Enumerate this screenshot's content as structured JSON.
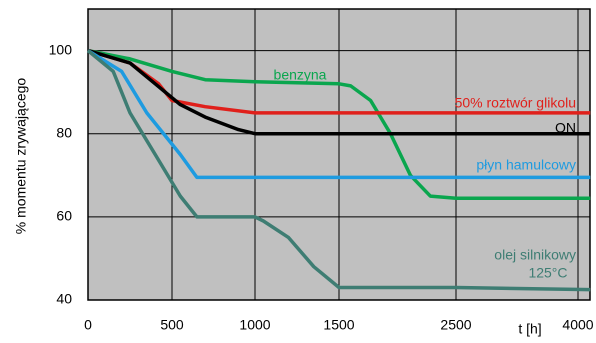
{
  "chart_data": {
    "type": "line",
    "y_label": "% momentu zrywającego",
    "x_label": "t [h]",
    "xlim": [
      0,
      4150
    ],
    "ylim": [
      40,
      110
    ],
    "xticks": [
      0,
      500,
      1000,
      1500,
      2500,
      4000
    ],
    "yticks": [
      40,
      60,
      80,
      100
    ],
    "grid": true,
    "series": [
      {
        "name": "benzyna",
        "color": "#0aa64e",
        "x": [
          0,
          250,
          500,
          700,
          1000,
          1500,
          1600,
          1770,
          1940,
          2110,
          2280,
          2500,
          4150
        ],
        "values": [
          100,
          98,
          95,
          93,
          92.5,
          92,
          91.5,
          88,
          80,
          70,
          65,
          64.5,
          64.5
        ]
      },
      {
        "name": "50% roztwór glikolu",
        "color": "#e0201b",
        "x": [
          0,
          250,
          420,
          500,
          700,
          1000,
          4150
        ],
        "values": [
          100,
          97,
          92,
          88,
          86.5,
          85,
          85
        ]
      },
      {
        "name": "ON",
        "color": "#000000",
        "x": [
          0,
          250,
          400,
          550,
          700,
          900,
          1000,
          4150
        ],
        "values": [
          100,
          97,
          92,
          87,
          84,
          81,
          80,
          80
        ]
      },
      {
        "name": "płyn hamulcowy",
        "color": "#1e9be0",
        "x": [
          0,
          200,
          350,
          550,
          650,
          4150
        ],
        "values": [
          100,
          95,
          85,
          75,
          69.5,
          69.5
        ]
      },
      {
        "name": "olej silnikowy",
        "color": "#3e7d73",
        "x": [
          0,
          150,
          250,
          400,
          550,
          650,
          1000,
          1050,
          1200,
          1350,
          1500,
          2500,
          4150
        ],
        "values": [
          100,
          95,
          85,
          75,
          65,
          60,
          60,
          59,
          55,
          48,
          43,
          43,
          42.5
        ]
      }
    ],
    "annotation": "125°C"
  }
}
